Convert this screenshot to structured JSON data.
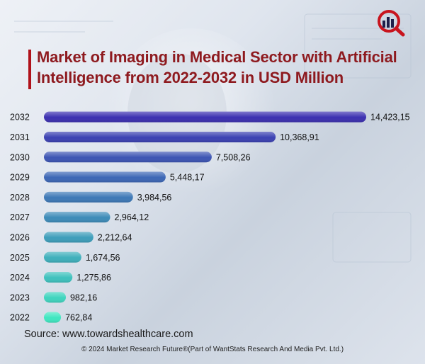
{
  "header": {
    "title": "Market of Imaging in Medical Sector with Artificial Intelligence from 2022-2032 in USD Million"
  },
  "colors": {
    "title": "#8e1a1f",
    "accent_bar": "#b0121b",
    "bar_top": "#3b2fb0",
    "bar_bottom": "#3fe6c0"
  },
  "logo": {
    "icon": "market-research-future-logo-icon"
  },
  "chart_data": {
    "type": "bar",
    "orientation": "horizontal",
    "categories": [
      "2032",
      "2031",
      "2030",
      "2029",
      "2028",
      "2027",
      "2026",
      "2025",
      "2024",
      "2023",
      "2022"
    ],
    "values": [
      14423.15,
      10368.91,
      7508.26,
      5448.17,
      3984.56,
      2964.12,
      2212.64,
      1674.56,
      1275.86,
      982.16,
      762.84
    ],
    "value_labels": [
      "14,423,15",
      "10,368,91",
      "7,508,26",
      "5,448,17",
      "3,984,56",
      "2,964,12",
      "2,212,64",
      "1,674,56",
      "1,275,86",
      "982,16",
      "762,84"
    ],
    "title": "Market of Imaging in Medical Sector with Artificial Intelligence from 2022-2032 in USD Million",
    "xlabel": "",
    "ylabel": "",
    "grid": false,
    "legend": "none"
  },
  "footer": {
    "source": "Source: www.towardshealthcare.com",
    "copyright": "© 2024 Market Research Future®(Part of WantStats Research And Media Pvt. Ltd.)"
  }
}
